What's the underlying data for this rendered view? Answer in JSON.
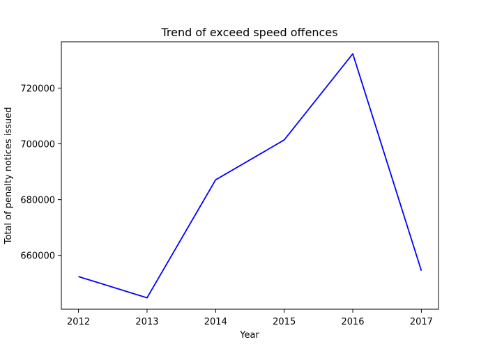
{
  "chart_data": {
    "type": "line",
    "title": "Trend of exceed speed offences",
    "xlabel": "Year",
    "ylabel": "Total of penalty notices issued",
    "x": [
      2012,
      2013,
      2014,
      2015,
      2016,
      2017
    ],
    "xticks": [
      "2012",
      "2013",
      "2014",
      "2015",
      "2016",
      "2017"
    ],
    "yticks": [
      660000,
      680000,
      700000,
      720000
    ],
    "ytick_labels": [
      "660000",
      "680000",
      "700000",
      "720000"
    ],
    "xlim": [
      2011.75,
      2017.25
    ],
    "ylim": [
      640700,
      736600
    ],
    "series": [
      {
        "color": "#0000ff",
        "values": [
          652400,
          644800,
          687100,
          701400,
          732300,
          654500
        ]
      }
    ],
    "grid": false,
    "legend": "none"
  }
}
